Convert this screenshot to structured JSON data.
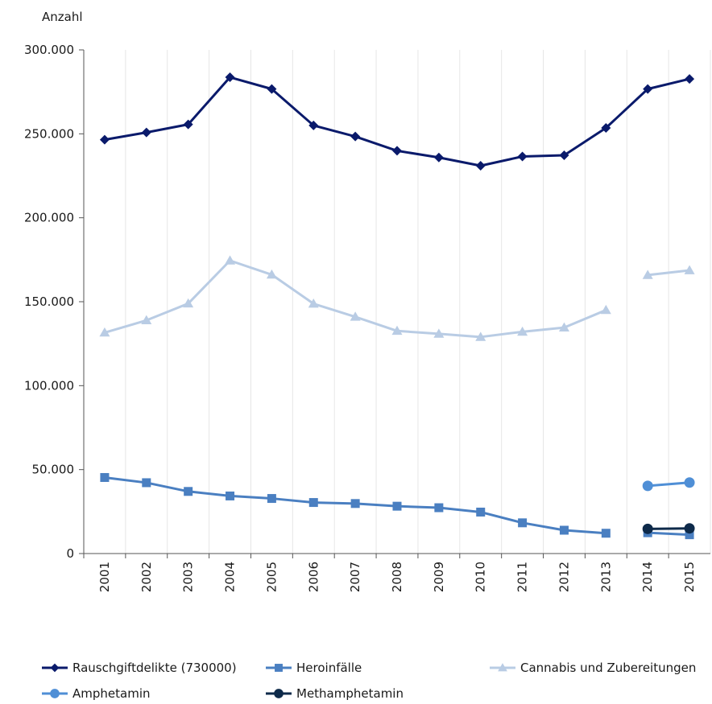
{
  "chart_data": {
    "type": "line",
    "ylabel": "Anzahl",
    "ylim": [
      0,
      300000
    ],
    "yticks": [
      "0",
      "50.000",
      "100.000",
      "150.000",
      "200.000",
      "250.000",
      "300.000"
    ],
    "ytick_values": [
      0,
      50000,
      100000,
      150000,
      200000,
      250000,
      300000
    ],
    "categories": [
      "2001",
      "2002",
      "2003",
      "2004",
      "2005",
      "2006",
      "2007",
      "2008",
      "2009",
      "2010",
      "2011",
      "2012",
      "2013",
      "2014",
      "2015"
    ],
    "grid": "vertical",
    "legend_position": "bottom",
    "series": [
      {
        "name": "Rauschgiftdelikte (730000)",
        "color": "#0a1a6b",
        "marker": "diamond",
        "values": [
          246500,
          250800,
          255600,
          283700,
          276700,
          255000,
          248400,
          239900,
          235900,
          231000,
          236500,
          237200,
          253500,
          276700,
          282700
        ],
        "segments": [
          [
            0,
            14
          ]
        ]
      },
      {
        "name": "Heroinfälle",
        "color": "#4a7fc1",
        "marker": "square",
        "values": [
          45300,
          42200,
          37000,
          34300,
          32800,
          30400,
          29800,
          28200,
          27300,
          24700,
          18300,
          13900,
          12100,
          12400,
          11200
        ],
        "segments": [
          [
            0,
            12
          ],
          [
            13,
            14
          ]
        ]
      },
      {
        "name": "Cannabis und Zubereitungen",
        "color": "#b9cce4",
        "marker": "triangle",
        "values": [
          131600,
          138900,
          148900,
          174500,
          166100,
          148800,
          141000,
          132600,
          130900,
          129000,
          132100,
          134600,
          145000,
          165900,
          168700
        ],
        "segments": [
          [
            0,
            12
          ],
          [
            13,
            14
          ]
        ]
      },
      {
        "name": "Amphetamin",
        "color": "#4f8fd6",
        "marker": "circle",
        "values": [
          null,
          null,
          null,
          null,
          null,
          null,
          null,
          null,
          null,
          null,
          null,
          null,
          null,
          40300,
          42300
        ],
        "segments": [
          [
            13,
            14
          ]
        ]
      },
      {
        "name": "Methamphetamin",
        "color": "#0e2a4a",
        "marker": "circle",
        "values": [
          null,
          null,
          null,
          null,
          null,
          null,
          null,
          null,
          null,
          null,
          null,
          null,
          null,
          14700,
          15000
        ],
        "segments": [
          [
            13,
            14
          ]
        ]
      }
    ]
  }
}
